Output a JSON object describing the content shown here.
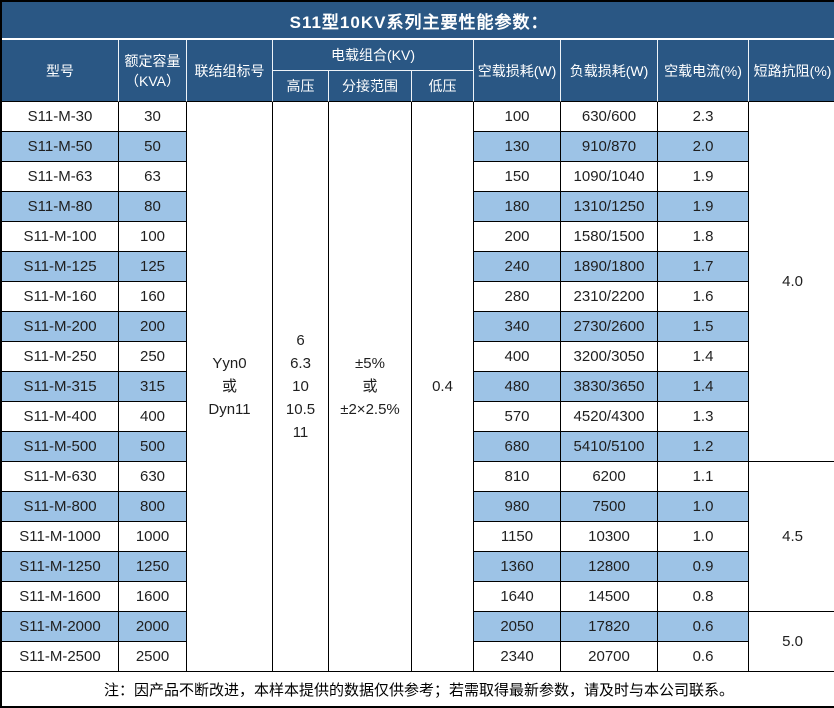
{
  "title": "S11型10KV系列主要性能参数：",
  "table": {
    "headers": {
      "model": "型号",
      "capacity": "额定容量\n（KVA）",
      "connection": "联结组标号",
      "voltage_group": "电载组合(KV)",
      "high_voltage": "高压",
      "tap_range": "分接范围",
      "low_voltage": "低压",
      "no_load_loss": "空载损耗(W)",
      "load_loss": "负载损耗(W)",
      "no_load_current": "空载电流(%)",
      "impedance": "短路抗阻(%)"
    },
    "merged": {
      "connection": "Yyn0\n或\nDyn11",
      "high_voltage": "6\n6.3\n10\n10.5\n11",
      "tap_range": "±5%\n或\n±2×2.5%",
      "low_voltage": "0.4"
    },
    "rows": [
      {
        "model": "S11-M-30",
        "kva": "30",
        "no_load_w": "100",
        "load_w": "630/600",
        "current": "2.3"
      },
      {
        "model": "S11-M-50",
        "kva": "50",
        "no_load_w": "130",
        "load_w": "910/870",
        "current": "2.0"
      },
      {
        "model": "S11-M-63",
        "kva": "63",
        "no_load_w": "150",
        "load_w": "1090/1040",
        "current": "1.9"
      },
      {
        "model": "S11-M-80",
        "kva": "80",
        "no_load_w": "180",
        "load_w": "1310/1250",
        "current": "1.9"
      },
      {
        "model": "S11-M-100",
        "kva": "100",
        "no_load_w": "200",
        "load_w": "1580/1500",
        "current": "1.8"
      },
      {
        "model": "S11-M-125",
        "kva": "125",
        "no_load_w": "240",
        "load_w": "1890/1800",
        "current": "1.7"
      },
      {
        "model": "S11-M-160",
        "kva": "160",
        "no_load_w": "280",
        "load_w": "2310/2200",
        "current": "1.6"
      },
      {
        "model": "S11-M-200",
        "kva": "200",
        "no_load_w": "340",
        "load_w": "2730/2600",
        "current": "1.5"
      },
      {
        "model": "S11-M-250",
        "kva": "250",
        "no_load_w": "400",
        "load_w": "3200/3050",
        "current": "1.4"
      },
      {
        "model": "S11-M-315",
        "kva": "315",
        "no_load_w": "480",
        "load_w": "3830/3650",
        "current": "1.4"
      },
      {
        "model": "S11-M-400",
        "kva": "400",
        "no_load_w": "570",
        "load_w": "4520/4300",
        "current": "1.3"
      },
      {
        "model": "S11-M-500",
        "kva": "500",
        "no_load_w": "680",
        "load_w": "5410/5100",
        "current": "1.2"
      },
      {
        "model": "S11-M-630",
        "kva": "630",
        "no_load_w": "810",
        "load_w": "6200",
        "current": "1.1"
      },
      {
        "model": "S11-M-800",
        "kva": "800",
        "no_load_w": "980",
        "load_w": "7500",
        "current": "1.0"
      },
      {
        "model": "S11-M-1000",
        "kva": "1000",
        "no_load_w": "1150",
        "load_w": "10300",
        "current": "1.0"
      },
      {
        "model": "S11-M-1250",
        "kva": "1250",
        "no_load_w": "1360",
        "load_w": "12800",
        "current": "0.9"
      },
      {
        "model": "S11-M-1600",
        "kva": "1600",
        "no_load_w": "1640",
        "load_w": "14500",
        "current": "0.8"
      },
      {
        "model": "S11-M-2000",
        "kva": "2000",
        "no_load_w": "2050",
        "load_w": "17820",
        "current": "0.6"
      },
      {
        "model": "S11-M-2500",
        "kva": "2500",
        "no_load_w": "2340",
        "load_w": "20700",
        "current": "0.6"
      }
    ],
    "impedance_groups": [
      {
        "value": "4.0",
        "rows": 12
      },
      {
        "value": "4.5",
        "rows": 5
      },
      {
        "value": "5.0",
        "rows": 2
      }
    ]
  },
  "note": "注：因产品不断改进，本样本提供的数据仅供参考；若需取得最新参数，请及时与本公司联系。",
  "colors": {
    "header_bg": "#2A5784",
    "row_alt_bg": "#9DC3E6",
    "border": "#000000",
    "header_text": "#FFFFFF",
    "body_text": "#1F1F1F"
  }
}
